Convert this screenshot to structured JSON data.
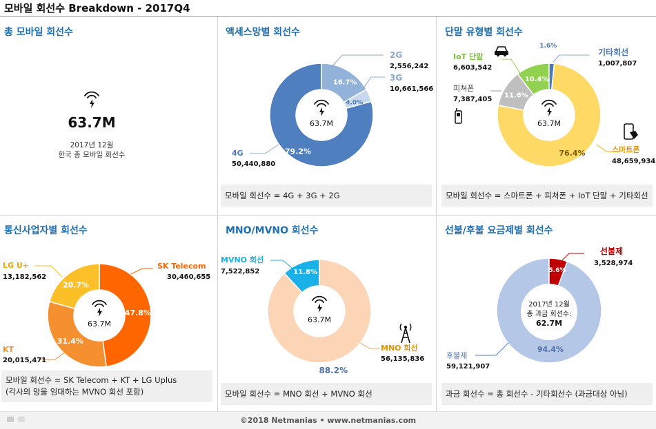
{
  "title": "모바일 회선수 Breakdown - 2017Q4",
  "footer": "©2018 Netmanias • www.netmanias.com",
  "panels": {
    "total": {
      "title": "총 모바일 회선수",
      "value": "63.7M",
      "caption1": "2017년 12월",
      "caption2": "한국 총 모바일 회선수"
    },
    "access": {
      "title": "액세스망별 회선수",
      "center": "63.7M",
      "formula": "모바일 회선수 = 4G + 3G + 2G"
    },
    "device": {
      "title": "단말 유형별 회선수",
      "center": "63.7M",
      "formula": "모바일 회선수 = 스마트폰 + 피쳐폰 + IoT 단말 + 기타회선"
    },
    "operator": {
      "title": "통신사업자별 회선수",
      "center": "63.7M",
      "formula1": "모바일 회선수 = SK Telecom + KT + LG Uplus",
      "formula2": "(각사의 망을 임대하는 MVNO 회선 포함)"
    },
    "mno": {
      "title": "MNO/MVNO 회선수",
      "center": "63.7M",
      "formula": "모바일 회선수 = MNO 회선 + MVNO 회선"
    },
    "billing": {
      "title": "선불/후불 요금제별 회선수",
      "center1": "2017년 12월",
      "center2": "총 과금 회선수:",
      "center3": "62.7M",
      "formula": "과금 회선수 = 총 회선수 - 기타회선수 (과금대상 아님)"
    }
  },
  "chart_data": [
    {
      "type": "pie",
      "id": "access",
      "categories": [
        "4G",
        "3G",
        "2G"
      ],
      "values": [
        50440880,
        10661566,
        2556242
      ],
      "value_labels": [
        "50,440,880",
        "10,661,566",
        "2,556,242"
      ],
      "percent_labels": [
        "79.2%",
        "16.7%",
        "4.0%"
      ],
      "percents": [
        79.2,
        16.7,
        4.0
      ],
      "colors": [
        "#4f7fbf",
        "#93b2d9",
        "#c8d8ec"
      ]
    },
    {
      "type": "pie",
      "id": "device",
      "categories": [
        "스마트폰",
        "피쳐폰",
        "IoT 단말",
        "기타회선"
      ],
      "values": [
        48659934,
        7387405,
        6603542,
        1007807
      ],
      "value_labels": [
        "48,659,934",
        "7,387,405",
        "6,603,542",
        "1,007,807"
      ],
      "percent_labels": [
        "76.4%",
        "11.6%",
        "10.4%",
        "1.6%"
      ],
      "percents": [
        76.4,
        11.6,
        10.4,
        1.6
      ],
      "colors": [
        "#ffd966",
        "#bfbfbf",
        "#92d050",
        "#4a78b8"
      ]
    },
    {
      "type": "pie",
      "id": "operator",
      "categories": [
        "SK Telecom",
        "KT",
        "LG U+"
      ],
      "values": [
        30460655,
        20015471,
        13182562
      ],
      "value_labels": [
        "30,460,655",
        "20,015,471",
        "13,182,562"
      ],
      "percent_labels": [
        "47.8%",
        "31.4%",
        "20.7%"
      ],
      "percents": [
        47.8,
        31.4,
        20.7
      ],
      "colors": [
        "#ff6600",
        "#f49030",
        "#fbbf27"
      ]
    },
    {
      "type": "pie",
      "id": "mno",
      "categories": [
        "MNO 회선",
        "MVNO 회선"
      ],
      "values": [
        56135836,
        7522852
      ],
      "value_labels": [
        "56,135,836",
        "7,522,852"
      ],
      "percent_labels": [
        "88.2%",
        "11.8%"
      ],
      "percents": [
        88.2,
        11.8
      ],
      "colors": [
        "#fbd5b5",
        "#1ab0e8"
      ]
    },
    {
      "type": "pie",
      "id": "billing",
      "categories": [
        "후불제",
        "선불제"
      ],
      "values": [
        59121907,
        3528974
      ],
      "value_labels": [
        "59,121,907",
        "3,528,974"
      ],
      "percent_labels": [
        "94.4%",
        "5.6%"
      ],
      "percents": [
        94.4,
        5.6
      ],
      "colors": [
        "#b4c7e7",
        "#c00000"
      ]
    }
  ]
}
